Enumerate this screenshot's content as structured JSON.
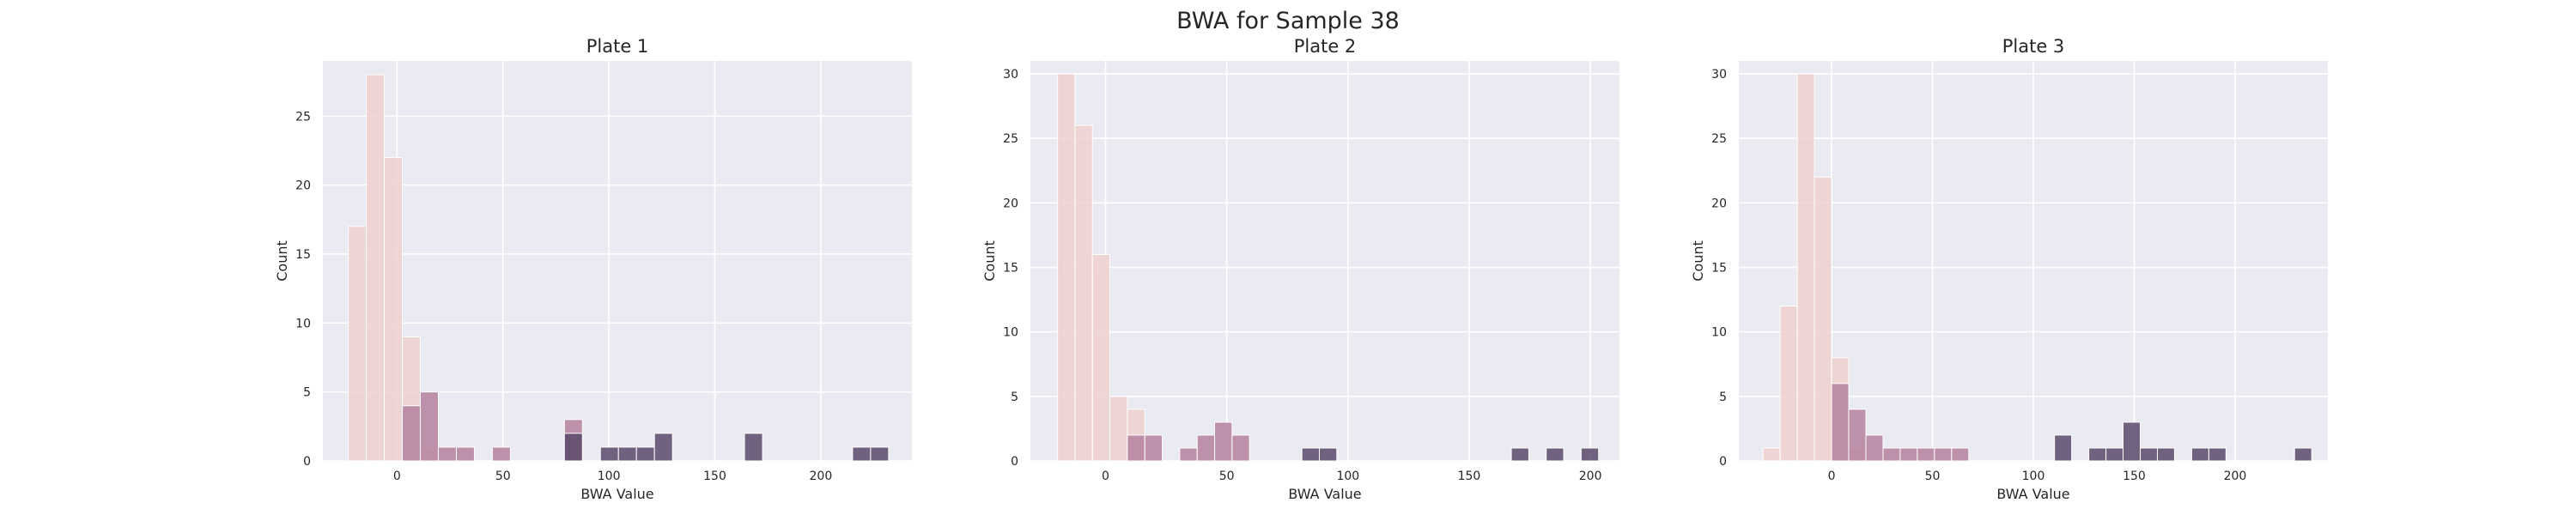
{
  "figure": {
    "suptitle": "BWA for Sample 38",
    "colors": {
      "background": "#eaeaf2",
      "grid": "#ffffff",
      "text": "#262626",
      "bin_edge": "#ffffff",
      "hue_low": "#efd1cf",
      "hue_mid": "#b5809f",
      "hue_high": "#5b4a6a"
    }
  },
  "chart_data": [
    {
      "type": "bar",
      "title": "Plate 1",
      "xlabel": "BWA Value",
      "ylabel": "Count",
      "xlim": [
        -35,
        243
      ],
      "ylim": [
        0,
        29
      ],
      "xticks": [
        0,
        50,
        100,
        150,
        200
      ],
      "yticks": [
        0,
        5,
        10,
        15,
        20,
        25
      ],
      "grid": true,
      "bin_width": 8.5,
      "layers": [
        {
          "hue": "low",
          "bins": [
            [
              -23,
              17
            ],
            [
              -14.5,
              28
            ],
            [
              -6,
              22
            ],
            [
              2.5,
              9
            ],
            [
              11,
              1
            ]
          ]
        },
        {
          "hue": "mid",
          "bins": [
            [
              2.5,
              4
            ],
            [
              11,
              5
            ],
            [
              19.5,
              1
            ],
            [
              28,
              1
            ],
            [
              45,
              1
            ],
            [
              79,
              3
            ]
          ]
        },
        {
          "hue": "high",
          "bins": [
            [
              79,
              2
            ],
            [
              96,
              1
            ],
            [
              104.5,
              1
            ],
            [
              113,
              1
            ],
            [
              121.5,
              2
            ],
            [
              164,
              2
            ],
            [
              215,
              1
            ],
            [
              223.5,
              1
            ]
          ]
        }
      ]
    },
    {
      "type": "bar",
      "title": "Plate 2",
      "xlabel": "BWA Value",
      "ylabel": "Count",
      "xlim": [
        -31,
        212
      ],
      "ylim": [
        0,
        31
      ],
      "xticks": [
        0,
        50,
        100,
        150,
        200
      ],
      "yticks": [
        0,
        5,
        10,
        15,
        20,
        25,
        30
      ],
      "grid": true,
      "bin_width": 7.2,
      "layers": [
        {
          "hue": "low",
          "bins": [
            [
              -19.8,
              30
            ],
            [
              -12.6,
              26
            ],
            [
              -5.4,
              16
            ],
            [
              1.8,
              5
            ],
            [
              9,
              4
            ]
          ]
        },
        {
          "hue": "mid",
          "bins": [
            [
              9,
              2
            ],
            [
              16.2,
              2
            ],
            [
              30.6,
              1
            ],
            [
              37.8,
              2
            ],
            [
              45,
              3
            ],
            [
              52.2,
              2
            ]
          ]
        },
        {
          "hue": "high",
          "bins": [
            [
              81,
              1
            ],
            [
              88.2,
              1
            ],
            [
              167.4,
              1
            ],
            [
              181.8,
              1
            ],
            [
              196.2,
              1
            ]
          ]
        }
      ]
    },
    {
      "type": "bar",
      "title": "Plate 3",
      "xlabel": "BWA Value",
      "ylabel": "Count",
      "xlim": [
        -46,
        246
      ],
      "ylim": [
        0,
        31
      ],
      "xticks": [
        0,
        50,
        100,
        150,
        200
      ],
      "yticks": [
        0,
        5,
        10,
        15,
        20,
        25,
        30
      ],
      "grid": true,
      "bin_width": 8.5,
      "layers": [
        {
          "hue": "low",
          "bins": [
            [
              -34,
              1
            ],
            [
              -25.5,
              12
            ],
            [
              -17,
              30
            ],
            [
              -8.5,
              22
            ],
            [
              0,
              8
            ],
            [
              8.5,
              1
            ]
          ]
        },
        {
          "hue": "mid",
          "bins": [
            [
              0,
              6
            ],
            [
              8.5,
              4
            ],
            [
              17,
              2
            ],
            [
              25.5,
              1
            ],
            [
              34,
              1
            ],
            [
              42.5,
              1
            ],
            [
              51,
              1
            ],
            [
              59.5,
              1
            ]
          ]
        },
        {
          "hue": "high",
          "bins": [
            [
              110.5,
              2
            ],
            [
              127.5,
              1
            ],
            [
              136,
              1
            ],
            [
              144.5,
              3
            ],
            [
              153,
              1
            ],
            [
              161.5,
              1
            ],
            [
              178.5,
              1
            ],
            [
              187,
              1
            ],
            [
              229.5,
              1
            ]
          ]
        }
      ]
    }
  ]
}
